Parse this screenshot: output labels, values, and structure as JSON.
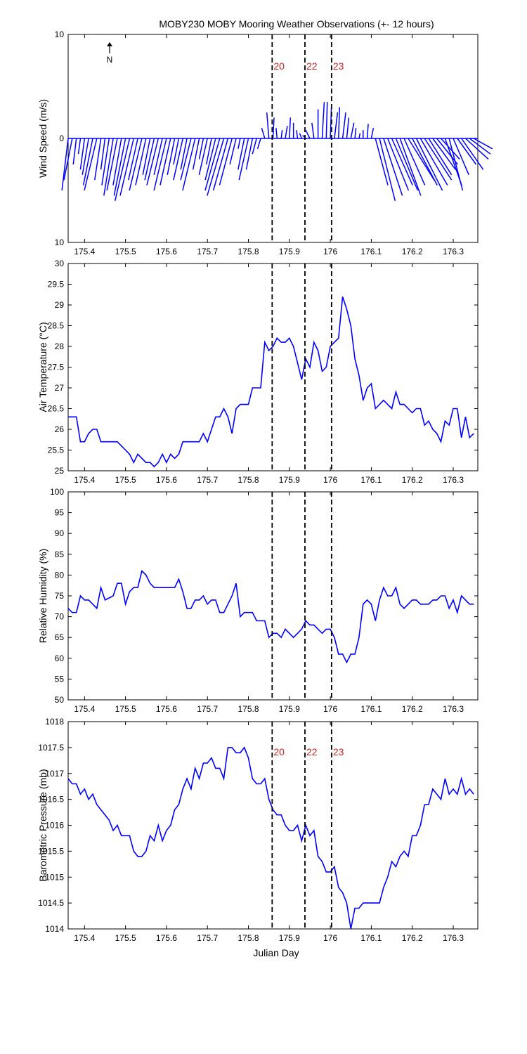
{
  "title": "MOBY230 MOBY Mooring Weather Observations (+- 12 hours)",
  "xlabel": "Julian Day",
  "north_label": "N",
  "colors": {
    "series": "#0000ff",
    "marker_text": "#cc2222",
    "axis": "#000000"
  },
  "x_ticks": [
    "175.4",
    "175.5",
    "175.6",
    "175.7",
    "175.8",
    "175.9",
    "176",
    "176.1",
    "176.2",
    "176.3"
  ],
  "chart_data": [
    {
      "type": "line",
      "subtype": "wind-stick",
      "ylabel": "Wind Speed (m/s)",
      "xlim": [
        175.36,
        176.36
      ],
      "ylim": [
        -10,
        10
      ],
      "y_ticks": [
        "10",
        "0",
        "10"
      ],
      "markers": [
        {
          "x": 175.858,
          "label": "20"
        },
        {
          "x": 175.938,
          "label": "22"
        },
        {
          "x": 176.003,
          "label": "23"
        }
      ],
      "series": [
        {
          "x": [
            175.36,
            175.37,
            175.38,
            175.39,
            175.4,
            175.41,
            175.42,
            175.43,
            175.44,
            175.45,
            175.46,
            175.47,
            175.48,
            175.49,
            175.5,
            175.51,
            175.52,
            175.53,
            175.54,
            175.55,
            175.56,
            175.57,
            175.58,
            175.59,
            175.6,
            175.61,
            175.62,
            175.63,
            175.64,
            175.65,
            175.66,
            175.67,
            175.68,
            175.69,
            175.7,
            175.71,
            175.72,
            175.73,
            175.74,
            175.75,
            175.76,
            175.77,
            175.78,
            175.79,
            175.8,
            175.81,
            175.82,
            175.83,
            175.84,
            175.85,
            175.86,
            175.87,
            175.88,
            175.89,
            175.9,
            175.91,
            175.92,
            175.93,
            175.94,
            175.95,
            175.96,
            175.97,
            175.98,
            175.99,
            176.0,
            176.01,
            176.02,
            176.03,
            176.04,
            176.05,
            176.06,
            176.07,
            176.08,
            176.09,
            176.1,
            176.11,
            176.12,
            176.13,
            176.14,
            176.15,
            176.16,
            176.17,
            176.18,
            176.19,
            176.2,
            176.21,
            176.22,
            176.23,
            176.24,
            176.25,
            176.26,
            176.27,
            176.28,
            176.29,
            176.3,
            176.31,
            176.32,
            176.33,
            176.34,
            176.35
          ],
          "u": [
            -0.6,
            -0.8,
            -0.3,
            -0.2,
            -0.4,
            -0.6,
            -0.9,
            -1.2,
            -0.6,
            -0.4,
            -0.7,
            -0.9,
            -1.0,
            -0.8,
            -1.1,
            -1.4,
            -1.3,
            -0.9,
            -1.2,
            -1.0,
            -0.7,
            -0.9,
            -1.1,
            -0.8,
            -1.2,
            -1.0,
            -0.7,
            -0.5,
            -0.9,
            -0.6,
            -1.0,
            -1.2,
            -0.6,
            -0.4,
            -0.8,
            -0.5,
            -1.0,
            -1.4,
            -1.6,
            -1.4,
            -1.2,
            -0.6,
            -0.2,
            -0.6,
            -0.9,
            -0.6,
            -0.4,
            -0.3,
            -0.3,
            -0.2,
            0.1,
            -0.1,
            0.1,
            0.2,
            0.1,
            0.0,
            -0.1,
            -0.2,
            -0.3,
            -0.4,
            -0.2,
            0.0,
            0.2,
            0.1,
            0.1,
            0.3,
            0.1,
            0.3,
            0.2,
            0.3,
            0.1,
            0.1,
            0.0,
            0.1,
            0.2,
            1.2,
            1.5,
            1.8,
            2.0,
            2.0,
            2.1,
            2.0,
            2.0,
            2.5,
            2.4,
            2.5,
            2.6,
            2.6,
            2.2,
            2.2,
            2.0,
            1.8,
            1.6,
            1.3,
            1.5,
            1.8,
            2.1,
            2.2,
            2.0,
            1.8
          ],
          "v": [
            -5.0,
            -4.0,
            -2.5,
            -1.5,
            -3.0,
            -3.5,
            -4.5,
            -5.0,
            -4.0,
            -3.0,
            -4.5,
            -5.5,
            -5.0,
            -4.5,
            -5.5,
            -6.0,
            -5.5,
            -4.0,
            -5.0,
            -4.5,
            -3.5,
            -4.0,
            -4.5,
            -3.5,
            -5.0,
            -4.5,
            -3.5,
            -2.5,
            -4.0,
            -3.0,
            -4.0,
            -5.0,
            -3.0,
            -2.0,
            -3.5,
            -2.5,
            -4.0,
            -5.0,
            -5.5,
            -5.0,
            -4.5,
            -2.5,
            -1.0,
            -3.0,
            -4.0,
            -3.0,
            -1.5,
            -1.0,
            1.0,
            2.5,
            2.0,
            1.0,
            0.8,
            1.2,
            2.0,
            1.5,
            0.8,
            0.5,
            0.3,
            0.8,
            1.5,
            2.8,
            3.5,
            3.5,
            3.0,
            2.5,
            3.0,
            2.5,
            2.0,
            1.5,
            1.0,
            0.5,
            0.8,
            1.4,
            1.0,
            -4.5,
            -6.0,
            -5.5,
            -5.0,
            -4.5,
            -5.0,
            -5.5,
            -4.5,
            -4.0,
            -4.5,
            -5.0,
            -4.5,
            -4.0,
            -3.5,
            -3.0,
            -2.5,
            -2.0,
            -4.5,
            -5.0,
            -3.5,
            -2.5,
            -3.0,
            -2.0,
            -1.5,
            -1.0
          ]
        }
      ]
    },
    {
      "type": "line",
      "ylabel": "Air Temperature (°C)",
      "xlim": [
        175.36,
        176.36
      ],
      "ylim": [
        25,
        30
      ],
      "y_ticks": [
        "25",
        "25.5",
        "26",
        "26.5",
        "27",
        "27.5",
        "28",
        "28.5",
        "29",
        "29.5",
        "30"
      ],
      "markers": [
        {
          "x": 175.858
        },
        {
          "x": 175.938
        },
        {
          "x": 176.003
        }
      ],
      "series": [
        {
          "x": [
            175.36,
            175.37,
            175.38,
            175.39,
            175.4,
            175.41,
            175.42,
            175.43,
            175.44,
            175.45,
            175.46,
            175.47,
            175.48,
            175.49,
            175.5,
            175.51,
            175.52,
            175.53,
            175.54,
            175.55,
            175.56,
            175.57,
            175.58,
            175.59,
            175.6,
            175.61,
            175.62,
            175.63,
            175.64,
            175.65,
            175.66,
            175.67,
            175.68,
            175.69,
            175.7,
            175.71,
            175.72,
            175.73,
            175.74,
            175.75,
            175.76,
            175.77,
            175.78,
            175.79,
            175.8,
            175.81,
            175.82,
            175.83,
            175.84,
            175.85,
            175.86,
            175.87,
            175.88,
            175.89,
            175.9,
            175.91,
            175.92,
            175.93,
            175.94,
            175.95,
            175.96,
            175.97,
            175.98,
            175.99,
            176.0,
            176.01,
            176.02,
            176.03,
            176.04,
            176.05,
            176.06,
            176.07,
            176.08,
            176.09,
            176.1,
            176.11,
            176.12,
            176.13,
            176.14,
            176.15,
            176.16,
            176.17,
            176.18,
            176.19,
            176.2,
            176.21,
            176.22,
            176.23,
            176.24,
            176.25,
            176.26,
            176.27,
            176.28,
            176.29,
            176.3,
            176.31,
            176.32,
            176.33,
            176.34,
            176.35
          ],
          "y": [
            26.3,
            26.3,
            26.3,
            25.7,
            25.7,
            25.9,
            26.0,
            26.0,
            25.7,
            25.7,
            25.7,
            25.7,
            25.7,
            25.6,
            25.5,
            25.4,
            25.2,
            25.4,
            25.3,
            25.2,
            25.2,
            25.1,
            25.2,
            25.4,
            25.2,
            25.4,
            25.3,
            25.4,
            25.7,
            25.7,
            25.7,
            25.7,
            25.7,
            25.9,
            25.7,
            26.0,
            26.3,
            26.3,
            26.5,
            26.3,
            25.9,
            26.5,
            26.6,
            26.6,
            26.6,
            27.0,
            27.0,
            27.0,
            28.1,
            27.9,
            28.0,
            28.2,
            28.1,
            28.1,
            28.2,
            28.0,
            27.6,
            27.2,
            27.7,
            27.5,
            28.1,
            27.9,
            27.4,
            27.5,
            28.0,
            28.1,
            28.2,
            29.2,
            28.9,
            28.5,
            27.7,
            27.3,
            26.7,
            27.0,
            27.1,
            26.5,
            26.6,
            26.7,
            26.6,
            26.5,
            26.9,
            26.6,
            26.6,
            26.5,
            26.4,
            26.5,
            26.5,
            26.1,
            26.2,
            26.0,
            25.9,
            25.7,
            26.2,
            26.1,
            26.5,
            26.5,
            25.8,
            26.3,
            25.8,
            25.9
          ]
        }
      ]
    },
    {
      "type": "line",
      "ylabel": "Relative Humidity (%)",
      "xlim": [
        175.36,
        176.36
      ],
      "ylim": [
        50,
        100
      ],
      "y_ticks": [
        "50",
        "55",
        "60",
        "65",
        "70",
        "75",
        "80",
        "85",
        "90",
        "95",
        "100"
      ],
      "markers": [
        {
          "x": 175.858
        },
        {
          "x": 175.938
        },
        {
          "x": 176.003
        }
      ],
      "series": [
        {
          "x": [
            175.36,
            175.37,
            175.38,
            175.39,
            175.4,
            175.41,
            175.42,
            175.43,
            175.44,
            175.45,
            175.46,
            175.47,
            175.48,
            175.49,
            175.5,
            175.51,
            175.52,
            175.53,
            175.54,
            175.55,
            175.56,
            175.57,
            175.58,
            175.59,
            175.6,
            175.61,
            175.62,
            175.63,
            175.64,
            175.65,
            175.66,
            175.67,
            175.68,
            175.69,
            175.7,
            175.71,
            175.72,
            175.73,
            175.74,
            175.75,
            175.76,
            175.77,
            175.78,
            175.79,
            175.8,
            175.81,
            175.82,
            175.83,
            175.84,
            175.85,
            175.86,
            175.87,
            175.88,
            175.89,
            175.9,
            175.91,
            175.92,
            175.93,
            175.94,
            175.95,
            175.96,
            175.97,
            175.98,
            175.99,
            176.0,
            176.01,
            176.02,
            176.03,
            176.04,
            176.05,
            176.06,
            176.07,
            176.08,
            176.09,
            176.1,
            176.11,
            176.12,
            176.13,
            176.14,
            176.15,
            176.16,
            176.17,
            176.18,
            176.19,
            176.2,
            176.21,
            176.22,
            176.23,
            176.24,
            176.25,
            176.26,
            176.27,
            176.28,
            176.29,
            176.3,
            176.31,
            176.32,
            176.33,
            176.34,
            176.35
          ],
          "y": [
            72,
            71,
            71,
            75,
            74,
            74,
            73,
            72,
            77,
            74,
            74.5,
            75,
            78,
            78,
            73,
            76,
            77,
            77,
            81,
            80,
            78,
            77,
            77,
            77,
            77,
            77,
            77,
            79,
            76,
            72,
            72,
            74,
            74,
            75,
            73,
            74,
            74,
            71,
            71,
            73,
            75,
            78,
            70,
            71,
            71,
            71,
            69,
            69,
            69,
            65,
            66,
            66,
            65,
            67,
            66,
            65,
            66,
            67,
            69,
            68,
            68,
            67,
            66,
            67,
            67,
            65,
            61,
            61,
            59,
            61,
            61,
            65,
            73,
            74,
            73,
            69,
            74,
            77,
            75,
            75,
            77,
            73,
            72,
            73,
            74,
            74,
            73,
            73,
            73,
            74,
            74,
            75,
            75,
            72,
            74,
            71,
            75,
            74,
            73,
            73
          ]
        }
      ]
    },
    {
      "type": "line",
      "ylabel": "Barometric Pressure (mb)",
      "xlim": [
        175.36,
        176.36
      ],
      "ylim": [
        1014,
        1018
      ],
      "y_ticks": [
        "1014",
        "1014.5",
        "1015",
        "1015.5",
        "1016",
        "1016.5",
        "1017",
        "1017.5",
        "1018"
      ],
      "markers": [
        {
          "x": 175.858,
          "label": "20"
        },
        {
          "x": 175.938,
          "label": "22"
        },
        {
          "x": 176.003,
          "label": "23"
        }
      ],
      "series": [
        {
          "x": [
            175.36,
            175.37,
            175.38,
            175.39,
            175.4,
            175.41,
            175.42,
            175.43,
            175.44,
            175.45,
            175.46,
            175.47,
            175.48,
            175.49,
            175.5,
            175.51,
            175.52,
            175.53,
            175.54,
            175.55,
            175.56,
            175.57,
            175.58,
            175.59,
            175.6,
            175.61,
            175.62,
            175.63,
            175.64,
            175.65,
            175.66,
            175.67,
            175.68,
            175.69,
            175.7,
            175.71,
            175.72,
            175.73,
            175.74,
            175.75,
            175.76,
            175.77,
            175.78,
            175.79,
            175.8,
            175.81,
            175.82,
            175.83,
            175.84,
            175.85,
            175.86,
            175.87,
            175.88,
            175.89,
            175.9,
            175.91,
            175.92,
            175.93,
            175.94,
            175.95,
            175.96,
            175.97,
            175.98,
            175.99,
            176.0,
            176.01,
            176.02,
            176.03,
            176.04,
            176.05,
            176.06,
            176.07,
            176.08,
            176.09,
            176.1,
            176.11,
            176.12,
            176.13,
            176.14,
            176.15,
            176.16,
            176.17,
            176.18,
            176.19,
            176.2,
            176.21,
            176.22,
            176.23,
            176.24,
            176.25,
            176.26,
            176.27,
            176.28,
            176.29,
            176.3,
            176.31,
            176.32,
            176.33,
            176.34,
            176.35
          ],
          "y": [
            1016.9,
            1016.8,
            1016.8,
            1016.6,
            1016.7,
            1016.5,
            1016.6,
            1016.4,
            1016.3,
            1016.2,
            1016.1,
            1015.9,
            1016.0,
            1015.8,
            1015.8,
            1015.8,
            1015.5,
            1015.4,
            1015.4,
            1015.5,
            1015.8,
            1015.7,
            1016.0,
            1015.7,
            1015.9,
            1016.0,
            1016.3,
            1016.4,
            1016.7,
            1016.9,
            1016.7,
            1017.1,
            1016.9,
            1017.2,
            1017.2,
            1017.3,
            1017.1,
            1017.1,
            1016.9,
            1017.5,
            1017.5,
            1017.4,
            1017.4,
            1017.5,
            1017.3,
            1016.9,
            1016.8,
            1016.8,
            1016.9,
            1016.5,
            1016.3,
            1016.2,
            1016.2,
            1016.0,
            1015.9,
            1015.9,
            1016.0,
            1015.7,
            1016.0,
            1015.8,
            1015.9,
            1015.4,
            1015.3,
            1015.1,
            1015.1,
            1015.2,
            1014.8,
            1014.7,
            1014.5,
            1014.0,
            1014.4,
            1014.4,
            1014.5,
            1014.5,
            1014.5,
            1014.5,
            1014.5,
            1014.8,
            1015.0,
            1015.3,
            1015.2,
            1015.4,
            1015.5,
            1015.4,
            1015.8,
            1015.8,
            1016.0,
            1016.4,
            1016.4,
            1016.7,
            1016.6,
            1016.5,
            1016.9,
            1016.6,
            1016.7,
            1016.6,
            1016.9,
            1016.6,
            1016.7,
            1016.6
          ]
        }
      ]
    }
  ]
}
